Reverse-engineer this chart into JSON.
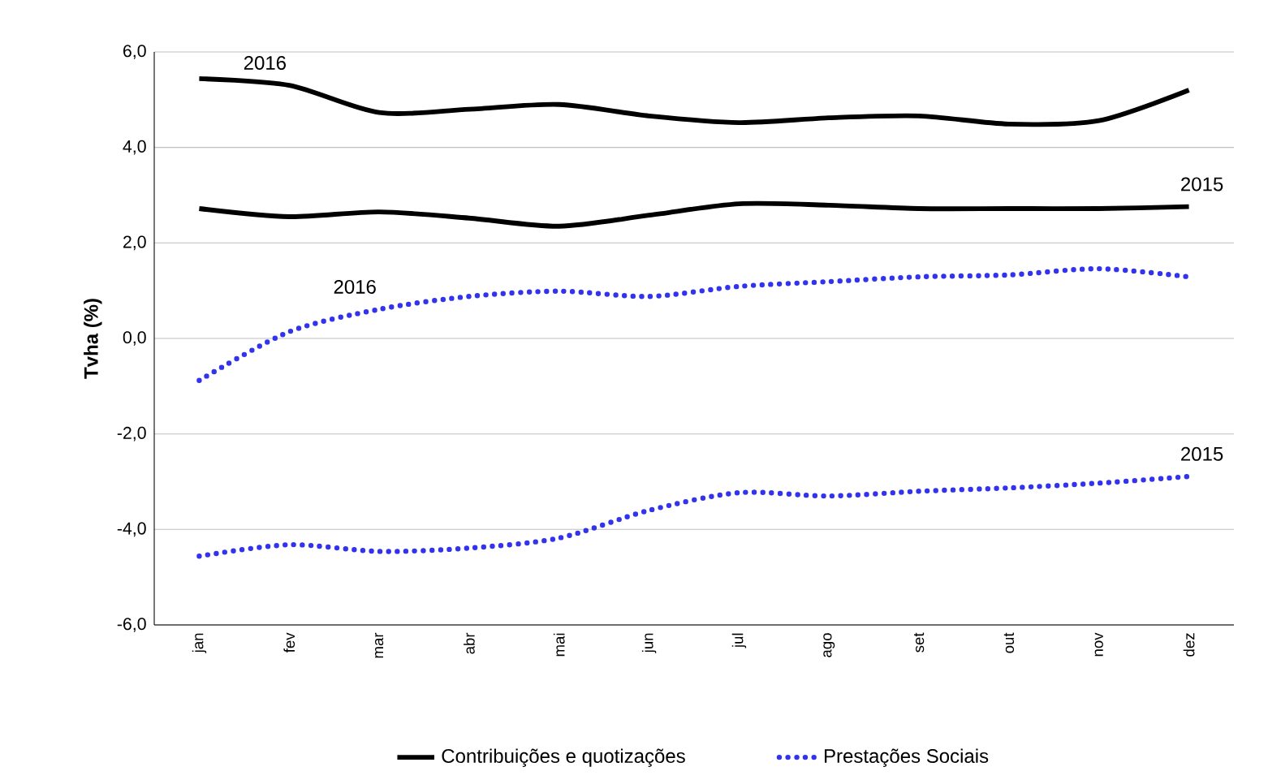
{
  "chart_data": {
    "type": "line",
    "ylabel": "**Tvha (%)**",
    "categories": [
      "jan",
      "fev",
      "mar",
      "abr",
      "mai",
      "jun",
      "jul",
      "ago",
      "set",
      "out",
      "nov",
      "dez"
    ],
    "series": [
      {
        "name": "Contribuições e quotizações",
        "color": "#000000",
        "line_style": "solid",
        "values": [
          5.44,
          5.3,
          4.73,
          4.8,
          4.9,
          4.66,
          4.52,
          4.62,
          4.66,
          4.49,
          4.56,
          5.2
        ]
      },
      {
        "color": "#000000",
        "line_style": "solid",
        "values": [
          2.72,
          2.55,
          2.65,
          2.52,
          2.35,
          2.58,
          2.82,
          2.79,
          2.72,
          2.72,
          2.72,
          2.76
        ]
      },
      {
        "name": "Prestações Sociais",
        "color": "#3333ee",
        "line_style": "dotted",
        "values": [
          -0.88,
          0.14,
          0.61,
          0.88,
          0.99,
          0.88,
          1.09,
          1.19,
          1.29,
          1.33,
          1.46,
          1.29
        ]
      },
      {
        "color": "#3333ee",
        "line_style": "dotted",
        "values": [
          -4.56,
          -4.32,
          -4.46,
          -4.39,
          -4.18,
          -3.6,
          -3.23,
          -3.3,
          -3.2,
          -3.13,
          -3.03,
          -2.89
        ]
      }
    ],
    "ylim": [
      -6,
      6
    ],
    "yticks": [
      {
        "value": -6,
        "label": "-6,0"
      },
      {
        "value": -4,
        "label": "-4,0"
      },
      {
        "value": -2,
        "label": "-2,0"
      },
      {
        "value": 0,
        "label": "0,0"
      },
      {
        "value": 2,
        "label": "2,0"
      },
      {
        "value": 4,
        "label": "4,0"
      },
      {
        "value": 6,
        "label": "6,0"
      }
    ],
    "grid": "y",
    "legend": "bottom",
    "marker": "none",
    "annotations": [
      {
        "text": "2016",
        "x": "fev",
        "y": 5.3
      },
      {
        "text": "2015",
        "x": "dez",
        "y": 2.76
      },
      {
        "text": "2016",
        "x": "mar",
        "y": 0.61
      },
      {
        "text": "2015",
        "x": "dez",
        "y": -2.89
      }
    ]
  }
}
